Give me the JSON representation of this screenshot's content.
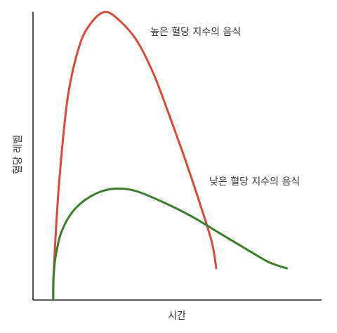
{
  "chart_data": {
    "type": "line",
    "xlabel": "시간",
    "ylabel": "혈당 레벨",
    "xlim": [
      0,
      100
    ],
    "ylim": [
      0,
      100
    ],
    "grid": false,
    "series": [
      {
        "name": "높은 혈당 지수의 음식",
        "color": "#d94a3a",
        "points": [
          [
            7,
            0
          ],
          [
            7.3,
            12
          ],
          [
            9,
            40
          ],
          [
            12,
            70
          ],
          [
            16,
            88
          ],
          [
            20,
            96
          ],
          [
            25,
            100
          ],
          [
            30,
            97
          ],
          [
            36,
            90
          ],
          [
            42,
            78
          ],
          [
            48,
            62
          ],
          [
            53,
            48
          ],
          [
            58,
            33
          ],
          [
            62,
            20
          ],
          [
            63.5,
            11
          ]
        ]
      },
      {
        "name": "낮은 혈당 지수의 음식",
        "color": "#3a7d2a",
        "points": [
          [
            7,
            0
          ],
          [
            7.1,
            8
          ],
          [
            8,
            16
          ],
          [
            10,
            24
          ],
          [
            14,
            31
          ],
          [
            20,
            36
          ],
          [
            27,
            38.5
          ],
          [
            35,
            38
          ],
          [
            45,
            34
          ],
          [
            55,
            29
          ],
          [
            65,
            23
          ],
          [
            75,
            17
          ],
          [
            82,
            13
          ],
          [
            88,
            11
          ]
        ]
      }
    ],
    "annotations": [
      {
        "text": "높은 혈당 지수의 음식",
        "series": 0
      },
      {
        "text": "낮은 혈당 지수의 음식",
        "series": 1
      }
    ]
  }
}
